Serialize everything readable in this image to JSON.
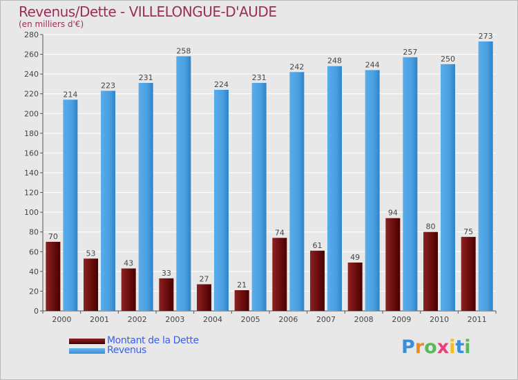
{
  "chart_data": {
    "type": "bar",
    "title": "Revenus/Dette - VILLELONGUE-D'AUDE",
    "subtitle": "(en milliers d'€)",
    "categories": [
      "2000",
      "2001",
      "2002",
      "2003",
      "2004",
      "2005",
      "2006",
      "2007",
      "2008",
      "2009",
      "2010",
      "2011"
    ],
    "series": [
      {
        "name": "Montant de la Dette",
        "color": "#7a1414",
        "values": [
          70,
          53,
          43,
          33,
          27,
          21,
          74,
          61,
          49,
          94,
          80,
          75
        ]
      },
      {
        "name": "Revenus",
        "color": "#4a9fe0",
        "values": [
          214,
          223,
          231,
          258,
          224,
          231,
          242,
          248,
          244,
          257,
          250,
          273
        ]
      }
    ],
    "ylim": [
      0,
      280
    ],
    "yticks": [
      0,
      20,
      40,
      60,
      80,
      100,
      120,
      140,
      160,
      180,
      200,
      220,
      240,
      260,
      280
    ],
    "grid": true,
    "legend_position": "bottom-left"
  },
  "logo": {
    "letters": [
      "P",
      "r",
      "o",
      "x",
      "i",
      "t",
      "i"
    ],
    "colors": [
      "#3a8fd8",
      "#f08a1c",
      "#5cb85c",
      "#e8407a",
      "#f0c020",
      "#3a8fd8",
      "#5cb85c"
    ]
  }
}
